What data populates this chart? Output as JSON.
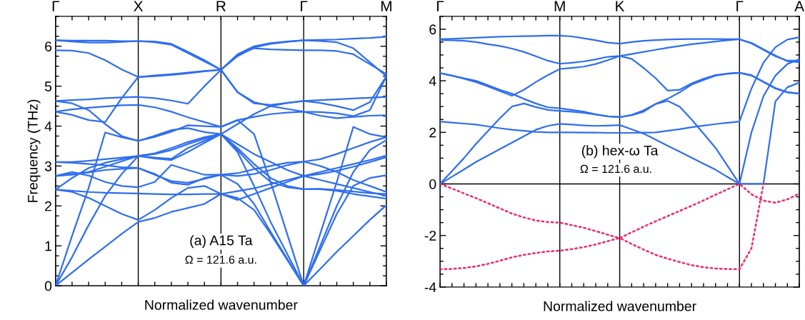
{
  "chart_data": [
    {
      "type": "line",
      "xlabel": "Normalized wavenumber",
      "ylabel": "Frequency (THz)",
      "ylim": [
        0,
        6.75
      ],
      "categories": [
        "Γ",
        null,
        null,
        null,
        null,
        "X",
        null,
        null,
        null,
        null,
        "R",
        null,
        null,
        null,
        null,
        "Γ",
        null,
        null,
        null,
        null,
        "M"
      ],
      "yticks": [
        0,
        1,
        2,
        3,
        4,
        5,
        6
      ],
      "grid": "x",
      "marker": "none",
      "line_style": "solid",
      "annotations": [
        "(a) A15 Ta",
        "Ω = 121.6 a.u."
      ],
      "series": [
        {
          "color": "#2f6ef0",
          "values": [
            6.15,
            6.14,
            6.14,
            6.14,
            6.13,
            6.13,
            6.1,
            6.04,
            5.83,
            5.62,
            5.41,
            5.8,
            6.0,
            6.08,
            6.12,
            6.15,
            6.16,
            6.17,
            6.19,
            6.21,
            6.24
          ]
        },
        {
          "color": "#2f6ef0",
          "values": [
            6.15,
            6.12,
            6.09,
            6.09,
            6.11,
            6.13,
            6.12,
            6.06,
            5.86,
            5.65,
            5.41,
            5.78,
            5.95,
            5.92,
            5.91,
            5.9,
            5.9,
            5.88,
            5.8,
            5.55,
            5.3
          ]
        },
        {
          "color": "#2f6ef0",
          "values": [
            5.9,
            5.89,
            5.83,
            5.65,
            5.42,
            5.23,
            5.27,
            5.3,
            5.34,
            5.38,
            5.41,
            4.85,
            4.57,
            4.53,
            4.58,
            4.63,
            4.65,
            4.67,
            4.69,
            4.71,
            4.73
          ]
        },
        {
          "color": "#2f6ef0",
          "values": [
            4.36,
            4.28,
            4.15,
            4.1,
            4.7,
            5.23,
            5.25,
            5.28,
            5.32,
            5.37,
            5.41,
            4.85,
            4.6,
            4.5,
            4.43,
            4.36,
            4.35,
            4.32,
            4.25,
            4.4,
            5.25
          ]
        },
        {
          "color": "#2f6ef0",
          "values": [
            4.63,
            4.65,
            4.67,
            4.7,
            4.72,
            4.73,
            4.7,
            4.64,
            4.56,
            5.0,
            5.41,
            5.75,
            5.97,
            6.06,
            6.11,
            6.15,
            6.13,
            6.1,
            5.95,
            5.6,
            5.25
          ]
        },
        {
          "color": "#2f6ef0",
          "values": [
            4.36,
            4.42,
            4.46,
            4.49,
            4.52,
            4.53,
            4.47,
            4.36,
            4.22,
            4.1,
            3.98,
            4.15,
            4.23,
            4.3,
            4.34,
            4.36,
            4.26,
            4.2,
            4.23,
            4.26,
            4.27
          ]
        },
        {
          "color": "#2f6ef0",
          "values": [
            0,
            1.25,
            2.45,
            3.84,
            3.72,
            3.63,
            3.73,
            3.86,
            4.02,
            4.0,
            3.98,
            4.15,
            3.8,
            2.6,
            1.3,
            0,
            1.3,
            2.6,
            3.98,
            3.8,
            3.72
          ]
        },
        {
          "color": "#2f6ef0",
          "values": [
            4.63,
            4.57,
            4.4,
            4.05,
            3.75,
            3.63,
            3.76,
            3.9,
            3.95,
            3.85,
            3.8,
            4.05,
            4.3,
            4.5,
            4.58,
            4.63,
            4.58,
            4.5,
            4.4,
            4.6,
            5.25
          ]
        },
        {
          "color": "#2f6ef0",
          "values": [
            3.1,
            3.1,
            3.13,
            3.17,
            3.21,
            3.25,
            3.3,
            3.4,
            3.55,
            3.68,
            3.8,
            3.55,
            3.3,
            3.1,
            2.9,
            2.75,
            2.85,
            2.95,
            3.05,
            3.15,
            3.26
          ]
        },
        {
          "color": "#2f6ef0",
          "values": [
            2.75,
            2.78,
            2.85,
            2.98,
            3.12,
            3.25,
            3.32,
            3.45,
            3.6,
            3.72,
            3.8,
            3.4,
            2.95,
            2.6,
            2.47,
            2.42,
            2.42,
            2.38,
            2.3,
            2.24,
            2.18
          ]
        },
        {
          "color": "#2f6ef0",
          "values": [
            2.41,
            2.7,
            2.95,
            3.08,
            3.17,
            3.25,
            3.21,
            3.18,
            3.45,
            3.63,
            3.8,
            3.45,
            3.05,
            2.7,
            2.5,
            2.42,
            2.43,
            2.4,
            2.36,
            2.32,
            2.3
          ]
        },
        {
          "color": "#2f6ef0",
          "values": [
            0,
            0.72,
            1.52,
            2.25,
            2.8,
            3.25,
            3.19,
            3.15,
            3.35,
            3.58,
            3.8,
            3.35,
            2.5,
            1.6,
            0.8,
            0,
            1.0,
            2.0,
            2.85,
            3.4,
            3.65
          ]
        },
        {
          "color": "#2f6ef0",
          "values": [
            3.1,
            3.08,
            3.05,
            3.02,
            2.97,
            2.95,
            2.8,
            2.58,
            2.53,
            2.7,
            2.78,
            2.82,
            2.92,
            3.0,
            3.08,
            3.11,
            3.17,
            3.3,
            3.45,
            3.6,
            3.72
          ]
        },
        {
          "color": "#2f6ef0",
          "values": [
            2.75,
            2.8,
            2.84,
            2.9,
            2.93,
            2.95,
            2.78,
            2.62,
            2.58,
            2.68,
            2.78,
            2.75,
            2.8,
            2.9,
            3.02,
            3.11,
            3.0,
            2.85,
            2.65,
            2.5,
            2.35
          ]
        },
        {
          "color": "#2f6ef0",
          "values": [
            2.75,
            2.85,
            2.76,
            2.6,
            2.5,
            2.47,
            2.6,
            3.03,
            2.9,
            2.78,
            2.78,
            2.55,
            2.05,
            1.35,
            0.68,
            0,
            0.9,
            1.8,
            2.5,
            2.7,
            2.77
          ]
        },
        {
          "color": "#2f6ef0",
          "values": [
            2.41,
            2.38,
            2.35,
            2.33,
            2.32,
            2.31,
            2.3,
            2.29,
            2.29,
            2.3,
            2.3,
            2.37,
            2.44,
            2.55,
            2.65,
            2.75,
            2.65,
            2.55,
            2.45,
            2.35,
            2.25
          ]
        },
        {
          "color": "#2f6ef0",
          "values": [
            2.41,
            2.35,
            2.2,
            2.0,
            1.8,
            1.65,
            1.9,
            2.2,
            2.45,
            2.5,
            2.3,
            2.2,
            1.9,
            1.3,
            0.65,
            0,
            0.42,
            0.85,
            1.25,
            1.65,
            2.02
          ]
        },
        {
          "color": "#2f6ef0",
          "values": [
            0,
            0.33,
            0.66,
            0.98,
            1.3,
            1.6,
            1.7,
            1.85,
            1.95,
            2.05,
            2.3,
            2.15,
            2.3,
            2.45,
            2.6,
            2.75,
            2.8,
            2.88,
            2.98,
            3.1,
            3.22
          ]
        }
      ]
    },
    {
      "type": "line",
      "xlabel": "Normalized wavenumber",
      "ylim": [
        -4,
        6.5
      ],
      "categories": [
        "Γ",
        null,
        null,
        null,
        null,
        null,
        null,
        null,
        null,
        null,
        "M",
        null,
        null,
        null,
        null,
        "K",
        null,
        null,
        null,
        null,
        null,
        null,
        null,
        null,
        null,
        "Γ",
        null,
        null,
        null,
        null,
        "A"
      ],
      "yticks": [
        -4,
        -2,
        0,
        2,
        4,
        6
      ],
      "grid": "x",
      "marker": "none",
      "line_style": "solid",
      "annotations": [
        "(b) hex-ω Ta",
        "Ω = 121.6 a.u."
      ],
      "ref_lines": [
        {
          "axis": "y",
          "value": 0,
          "color": "#000000"
        }
      ],
      "series": [
        {
          "color": "#2f6ef0",
          "values": [
            5.61,
            5.63,
            5.65,
            5.67,
            5.69,
            5.71,
            5.72,
            5.73,
            5.74,
            5.75,
            5.75,
            5.72,
            5.65,
            5.57,
            5.48,
            5.44,
            5.5,
            5.55,
            5.58,
            5.6,
            5.61,
            5.62,
            5.62,
            5.62,
            5.61,
            5.61,
            5.45,
            5.2,
            4.95,
            4.78,
            4.78
          ]
        },
        {
          "color": "#2f6ef0",
          "values": [
            5.58,
            5.57,
            5.55,
            5.5,
            5.42,
            5.35,
            5.25,
            5.12,
            4.95,
            4.78,
            4.66,
            4.7,
            4.75,
            4.83,
            4.93,
            4.96,
            5.04,
            5.12,
            5.2,
            5.28,
            5.35,
            5.42,
            5.47,
            5.52,
            5.57,
            5.61,
            5.47,
            5.22,
            4.98,
            4.76,
            4.72
          ]
        },
        {
          "color": "#2f6ef0",
          "values": [
            4.3,
            4.2,
            4.08,
            3.95,
            3.78,
            3.6,
            3.42,
            3.65,
            3.95,
            4.22,
            4.46,
            4.5,
            4.55,
            4.65,
            4.8,
            4.96,
            4.85,
            4.5,
            4.1,
            3.62,
            3.65,
            3.9,
            4.08,
            4.22,
            4.28,
            4.31,
            4.2,
            3.95,
            3.7,
            3.55,
            3.5
          ]
        },
        {
          "color": "#2f6ef0",
          "values": [
            4.3,
            4.2,
            4.1,
            4.0,
            3.83,
            3.65,
            3.5,
            3.3,
            3.12,
            2.97,
            2.93,
            2.87,
            2.8,
            2.7,
            2.62,
            2.59,
            2.68,
            2.85,
            3.1,
            3.3,
            3.55,
            3.85,
            4.03,
            4.2,
            4.27,
            4.31,
            4.22,
            3.97,
            3.72,
            3.56,
            3.5
          ]
        },
        {
          "color": "#2f6ef0",
          "values": [
            0,
            0.5,
            1.0,
            1.55,
            2.05,
            2.55,
            3.0,
            3.12,
            2.98,
            2.87,
            2.83,
            2.8,
            2.76,
            2.69,
            2.62,
            2.59,
            2.66,
            2.8,
            3.1,
            3.22,
            3.0,
            2.5,
            1.95,
            1.4,
            0.7,
            0,
            2.0,
            3.4,
            4.2,
            4.65,
            4.84
          ]
        },
        {
          "color": "#2f6ef0",
          "values": [
            0,
            0.28,
            0.56,
            0.85,
            1.1,
            1.35,
            1.6,
            1.85,
            2.1,
            2.25,
            2.33,
            2.3,
            2.27,
            2.25,
            2.26,
            2.28,
            2.12,
            1.95,
            1.72,
            1.48,
            1.25,
            1.02,
            0.78,
            0.55,
            0.27,
            0,
            0,
            0,
            3.2,
            3.75,
            3.93
          ]
        },
        {
          "color": "#2f6ef0",
          "values": [
            2.42,
            2.38,
            2.34,
            2.3,
            2.23,
            2.16,
            2.1,
            2.06,
            2.02,
            2.0,
            2.0,
            2.0,
            1.99,
            1.99,
            1.98,
            1.98,
            1.98,
            1.99,
            2.0,
            2.06,
            2.12,
            2.2,
            2.26,
            2.32,
            2.37,
            2.42,
            3.7,
            4.7,
            5.3,
            5.6,
            5.69
          ]
        },
        {
          "color": "#f0286e",
          "line_style": "dotted",
          "values": [
            0,
            -0.18,
            -0.37,
            -0.55,
            -0.75,
            -0.95,
            -1.15,
            -1.3,
            -1.42,
            -1.48,
            -1.5,
            -1.6,
            -1.7,
            -1.83,
            -1.97,
            -2.1,
            -1.88,
            -1.66,
            -1.45,
            -1.25,
            -1.05,
            -0.85,
            -0.64,
            -0.42,
            -0.21,
            0,
            -0.4,
            -0.65,
            -0.73,
            -0.6,
            -0.37
          ]
        },
        {
          "color": "#f0286e",
          "line_style": "dotted",
          "values": [
            -3.31,
            -3.3,
            -3.26,
            -3.2,
            -3.1,
            -2.98,
            -2.85,
            -2.75,
            -2.68,
            -2.62,
            -2.59,
            -2.53,
            -2.45,
            -2.35,
            -2.22,
            -2.1,
            -2.33,
            -2.55,
            -2.75,
            -2.9,
            -3.03,
            -3.15,
            -3.23,
            -3.28,
            -3.3,
            -3.31,
            -2.5,
            0,
            null,
            null,
            null
          ]
        }
      ]
    }
  ]
}
